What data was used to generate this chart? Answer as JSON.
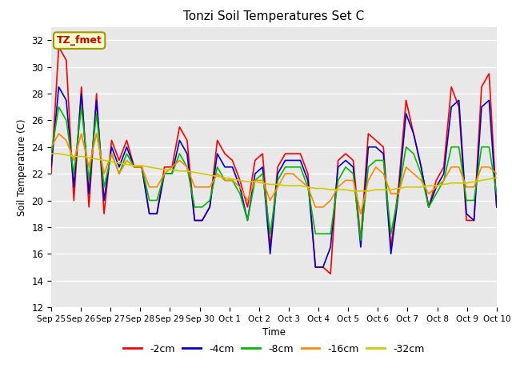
{
  "title": "Tonzi Soil Temperatures Set C",
  "xlabel": "Time",
  "ylabel": "Soil Temperature (C)",
  "ylim": [
    12,
    33
  ],
  "yticks": [
    12,
    14,
    16,
    18,
    20,
    22,
    24,
    26,
    28,
    30,
    32
  ],
  "annotation_text": "TZ_fmet",
  "annotation_bg": "#FFFFCC",
  "annotation_border": "#999900",
  "bg_color": "#E8E8E8",
  "legend_entries": [
    "-2cm",
    "-4cm",
    "-8cm",
    "-16cm",
    "-32cm"
  ],
  "line_colors": [
    "#FF0000",
    "#0000CC",
    "#00BB00",
    "#FF8800",
    "#CCCC00"
  ],
  "x_labels": [
    "Sep 25",
    "Sep 26",
    "Sep 27",
    "Sep 28",
    "Sep 29",
    "Sep 30",
    "Oct 1",
    "Oct 2",
    "Oct 3",
    "Oct 4",
    "Oct 5",
    "Oct 6",
    "Oct 7",
    "Oct 8",
    "Oct 9",
    "Oct 10"
  ],
  "x_positions": [
    0,
    1,
    2,
    3,
    4,
    5,
    6,
    7,
    8,
    9,
    10,
    11,
    12,
    13,
    14,
    15
  ],
  "series": {
    "-2cm": [
      22.0,
      31.5,
      30.5,
      20.0,
      28.5,
      19.5,
      28.0,
      19.0,
      24.5,
      23.0,
      24.5,
      22.5,
      22.5,
      19.0,
      19.0,
      22.5,
      22.5,
      25.5,
      24.5,
      18.5,
      18.5,
      19.5,
      24.5,
      23.5,
      23.0,
      21.5,
      19.5,
      23.0,
      23.5,
      16.5,
      22.5,
      23.5,
      23.5,
      23.5,
      22.0,
      15.0,
      15.0,
      14.5,
      23.0,
      23.5,
      23.0,
      17.0,
      25.0,
      24.5,
      24.0,
      16.5,
      21.0,
      27.5,
      25.0,
      22.5,
      19.5,
      21.5,
      22.5,
      28.5,
      27.0,
      18.5,
      18.5,
      28.5,
      29.5,
      19.5
    ],
    "-4cm": [
      22.5,
      28.5,
      27.5,
      21.0,
      28.0,
      20.5,
      27.5,
      20.0,
      24.0,
      22.5,
      24.0,
      22.5,
      22.5,
      19.0,
      19.0,
      22.0,
      22.0,
      24.5,
      23.5,
      18.5,
      18.5,
      19.5,
      23.5,
      22.5,
      22.5,
      21.0,
      18.5,
      22.0,
      22.5,
      16.0,
      22.0,
      23.0,
      23.0,
      23.0,
      21.5,
      15.0,
      15.0,
      16.5,
      22.5,
      23.0,
      22.5,
      16.5,
      24.0,
      24.0,
      23.5,
      16.0,
      20.5,
      26.5,
      25.0,
      22.5,
      19.5,
      21.0,
      22.0,
      27.0,
      27.5,
      19.0,
      18.5,
      27.0,
      27.5,
      19.5
    ],
    "-8cm": [
      23.5,
      27.0,
      26.0,
      22.0,
      27.0,
      21.5,
      26.5,
      21.0,
      23.5,
      22.0,
      23.5,
      22.5,
      22.5,
      20.0,
      20.0,
      22.0,
      22.0,
      23.5,
      22.5,
      19.5,
      19.5,
      20.0,
      22.5,
      21.5,
      21.5,
      20.5,
      18.5,
      21.5,
      22.0,
      17.5,
      21.5,
      22.5,
      22.5,
      22.5,
      21.0,
      17.5,
      17.5,
      17.5,
      21.5,
      22.5,
      22.0,
      17.0,
      22.5,
      23.0,
      23.0,
      17.5,
      20.5,
      24.0,
      23.5,
      22.0,
      19.5,
      20.5,
      21.5,
      24.0,
      24.0,
      20.0,
      20.0,
      24.0,
      24.0,
      20.5
    ],
    "-16cm": [
      24.0,
      25.0,
      24.5,
      23.0,
      25.0,
      22.5,
      25.0,
      22.0,
      23.5,
      22.0,
      23.0,
      22.5,
      22.5,
      21.0,
      21.0,
      22.0,
      22.5,
      23.0,
      22.5,
      21.0,
      21.0,
      21.0,
      22.0,
      21.5,
      21.5,
      21.0,
      20.0,
      21.5,
      21.5,
      20.0,
      21.0,
      22.0,
      22.0,
      21.5,
      21.0,
      19.5,
      19.5,
      20.0,
      21.0,
      21.5,
      21.5,
      19.0,
      21.5,
      22.5,
      22.0,
      20.5,
      20.5,
      22.5,
      22.0,
      21.5,
      20.5,
      21.0,
      21.5,
      22.5,
      22.5,
      21.0,
      21.0,
      22.5,
      22.5,
      22.0
    ],
    "-32cm": [
      23.5,
      23.5,
      23.4,
      23.3,
      23.3,
      23.2,
      23.1,
      23.0,
      22.9,
      22.8,
      22.7,
      22.6,
      22.6,
      22.5,
      22.4,
      22.3,
      22.3,
      22.2,
      22.2,
      22.1,
      22.0,
      21.9,
      21.8,
      21.7,
      21.6,
      21.5,
      21.4,
      21.4,
      21.3,
      21.2,
      21.2,
      21.1,
      21.1,
      21.1,
      21.0,
      20.9,
      20.9,
      20.8,
      20.8,
      20.8,
      20.7,
      20.7,
      20.7,
      20.8,
      20.8,
      20.8,
      20.9,
      21.0,
      21.0,
      21.0,
      21.1,
      21.1,
      21.2,
      21.3,
      21.3,
      21.3,
      21.4,
      21.5,
      21.6,
      21.7
    ]
  }
}
